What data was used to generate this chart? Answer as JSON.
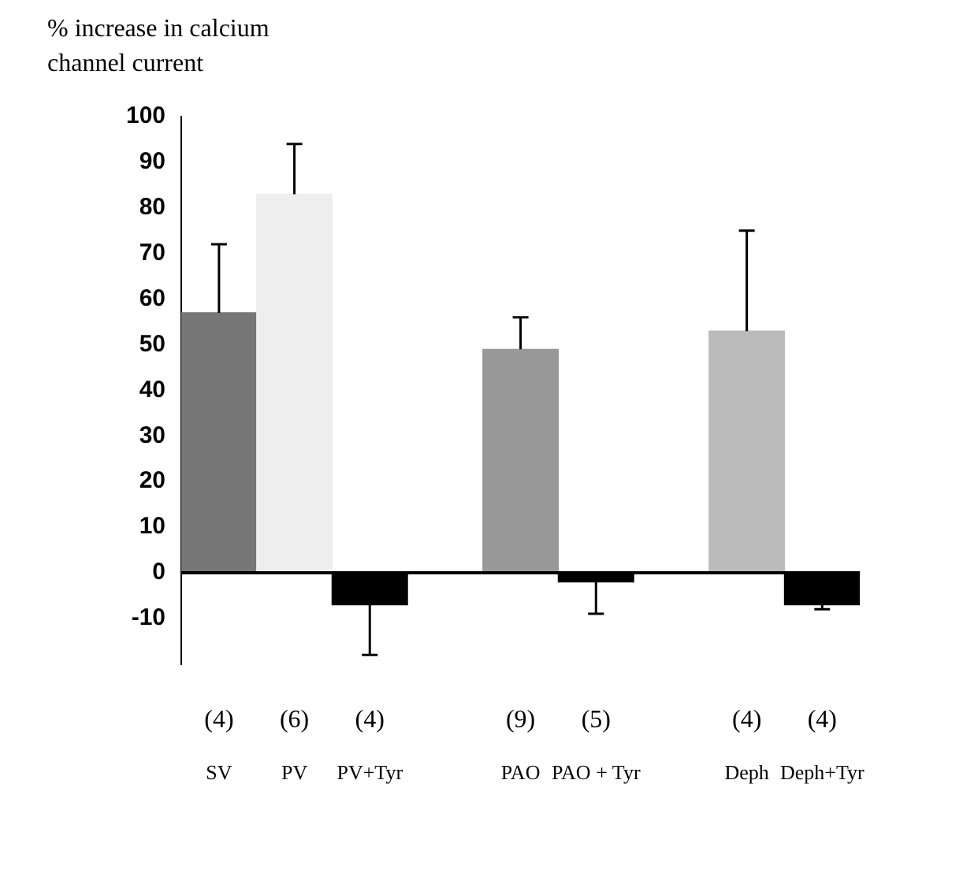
{
  "chart_data": {
    "type": "bar",
    "ylabel": "% increase in calcium channel current",
    "categories": [
      "SV",
      "PV",
      "PV+Tyr",
      null,
      "PAO",
      "PAO + Tyr",
      null,
      "Deph",
      "Deph+Tyr"
    ],
    "values": [
      57,
      83,
      -7,
      null,
      49,
      -2,
      null,
      53,
      -7
    ],
    "colors": [
      "#777777",
      "#eeeeee",
      "#000000",
      "#ffffff",
      "#999999",
      "#000000",
      "#ffffff",
      "#bbbbbb",
      "#000000"
    ],
    "errors": [
      [
        57,
        72
      ],
      [
        83,
        94
      ],
      [
        -18,
        -7
      ],
      null,
      [
        49,
        56
      ],
      [
        -9,
        -2
      ],
      null,
      [
        53,
        75
      ],
      [
        -8,
        -7
      ]
    ],
    "ylim": [
      -20,
      100
    ],
    "yticks": [
      -10,
      0,
      10,
      20,
      30,
      40,
      50,
      60,
      70,
      80,
      90,
      100
    ],
    "grid": false,
    "legend": false,
    "ref_lines": [
      {
        "axis": "y",
        "value": 0,
        "color": "#000000"
      }
    ],
    "annotations": [
      "(4)",
      "(6)",
      "(4)",
      "(9)",
      "(5)",
      "(4)",
      "(4)"
    ]
  }
}
